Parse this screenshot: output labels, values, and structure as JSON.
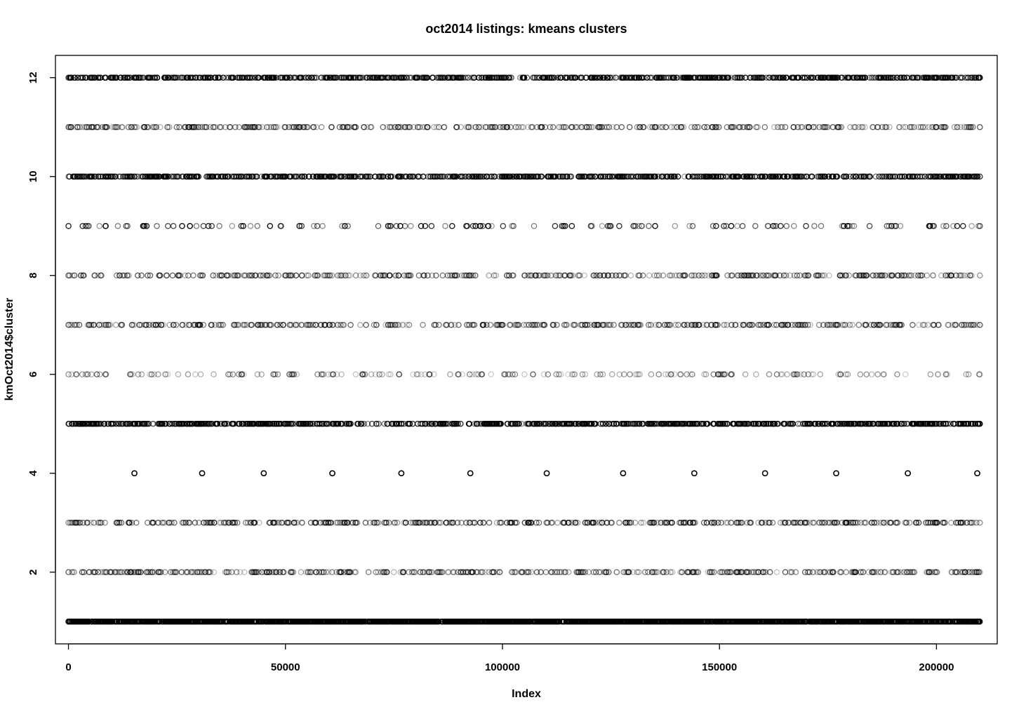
{
  "chart_data": {
    "type": "scatter",
    "title": "oct2014 listings: kmeans clusters",
    "xlabel": "Index",
    "ylabel": "kmOct2014$cluster",
    "xlim": [
      -3000,
      214000
    ],
    "ylim": [
      0.55,
      12.45
    ],
    "x_ticks": [
      0,
      50000,
      100000,
      150000,
      200000
    ],
    "x_tick_labels": [
      "0",
      "50000",
      "100000",
      "150000",
      "200000"
    ],
    "y_ticks": [
      2,
      4,
      6,
      8,
      10,
      12
    ],
    "y_tick_labels": [
      "2",
      "4",
      "6",
      "8",
      "10",
      "12"
    ],
    "grid": false,
    "legend": "none",
    "marker": "open-circle",
    "marker_color": "#000000",
    "n_points": 210000,
    "series": [
      {
        "cluster": 1,
        "density": "very-high",
        "samples": 2400,
        "opacity": 0.9
      },
      {
        "cluster": 2,
        "density": "medium",
        "samples": 420,
        "opacity": 0.45
      },
      {
        "cluster": 3,
        "density": "medium",
        "samples": 430,
        "opacity": 0.5
      },
      {
        "cluster": 4,
        "density": "very-low",
        "x": [
          15200,
          30800,
          45000,
          60800,
          76700,
          92600,
          110200,
          127800,
          144200,
          160500,
          176900,
          193400,
          209400
        ]
      },
      {
        "cluster": 5,
        "density": "high",
        "samples": 900,
        "opacity": 0.8
      },
      {
        "cluster": 6,
        "density": "low",
        "samples": 200,
        "opacity": 0.35
      },
      {
        "cluster": 7,
        "density": "medium",
        "samples": 420,
        "opacity": 0.45
      },
      {
        "cluster": 8,
        "density": "medium",
        "samples": 400,
        "opacity": 0.45
      },
      {
        "cluster": 9,
        "density": "low",
        "samples": 140,
        "opacity": 0.7
      },
      {
        "cluster": 10,
        "density": "high",
        "samples": 800,
        "opacity": 0.75
      },
      {
        "cluster": 11,
        "density": "medium",
        "samples": 400,
        "opacity": 0.45
      },
      {
        "cluster": 12,
        "density": "high",
        "samples": 800,
        "opacity": 0.75
      }
    ]
  }
}
